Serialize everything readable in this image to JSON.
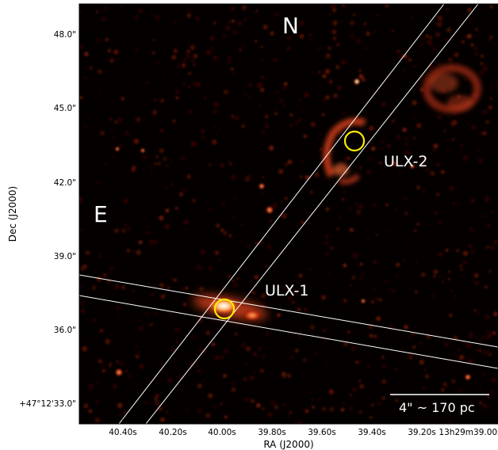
{
  "figure": {
    "compass": {
      "north": "N",
      "east": "E"
    },
    "sources": [
      {
        "label": "ULX-1"
      },
      {
        "label": "ULX-2"
      }
    ],
    "scalebar": {
      "label": "4\" ~ 170 pc"
    },
    "axes": {
      "xlabel": "RA (J2000)",
      "ylabel": "Dec (J2000)",
      "xticks": [
        "40.40s",
        "40.20s",
        "40.00s",
        "39.80s",
        "39.60s",
        "39.40s",
        "39.20s",
        "13h29m39.00s"
      ],
      "yticks": [
        "48.0\"",
        "45.0\"",
        "42.0\"",
        "39.0\"",
        "36.0\"",
        "+47°12'33.0\""
      ]
    },
    "colors": {
      "background": "#050000",
      "emission": "#d8401a",
      "marker": "#ffee00",
      "slit": "#ffffff"
    }
  }
}
